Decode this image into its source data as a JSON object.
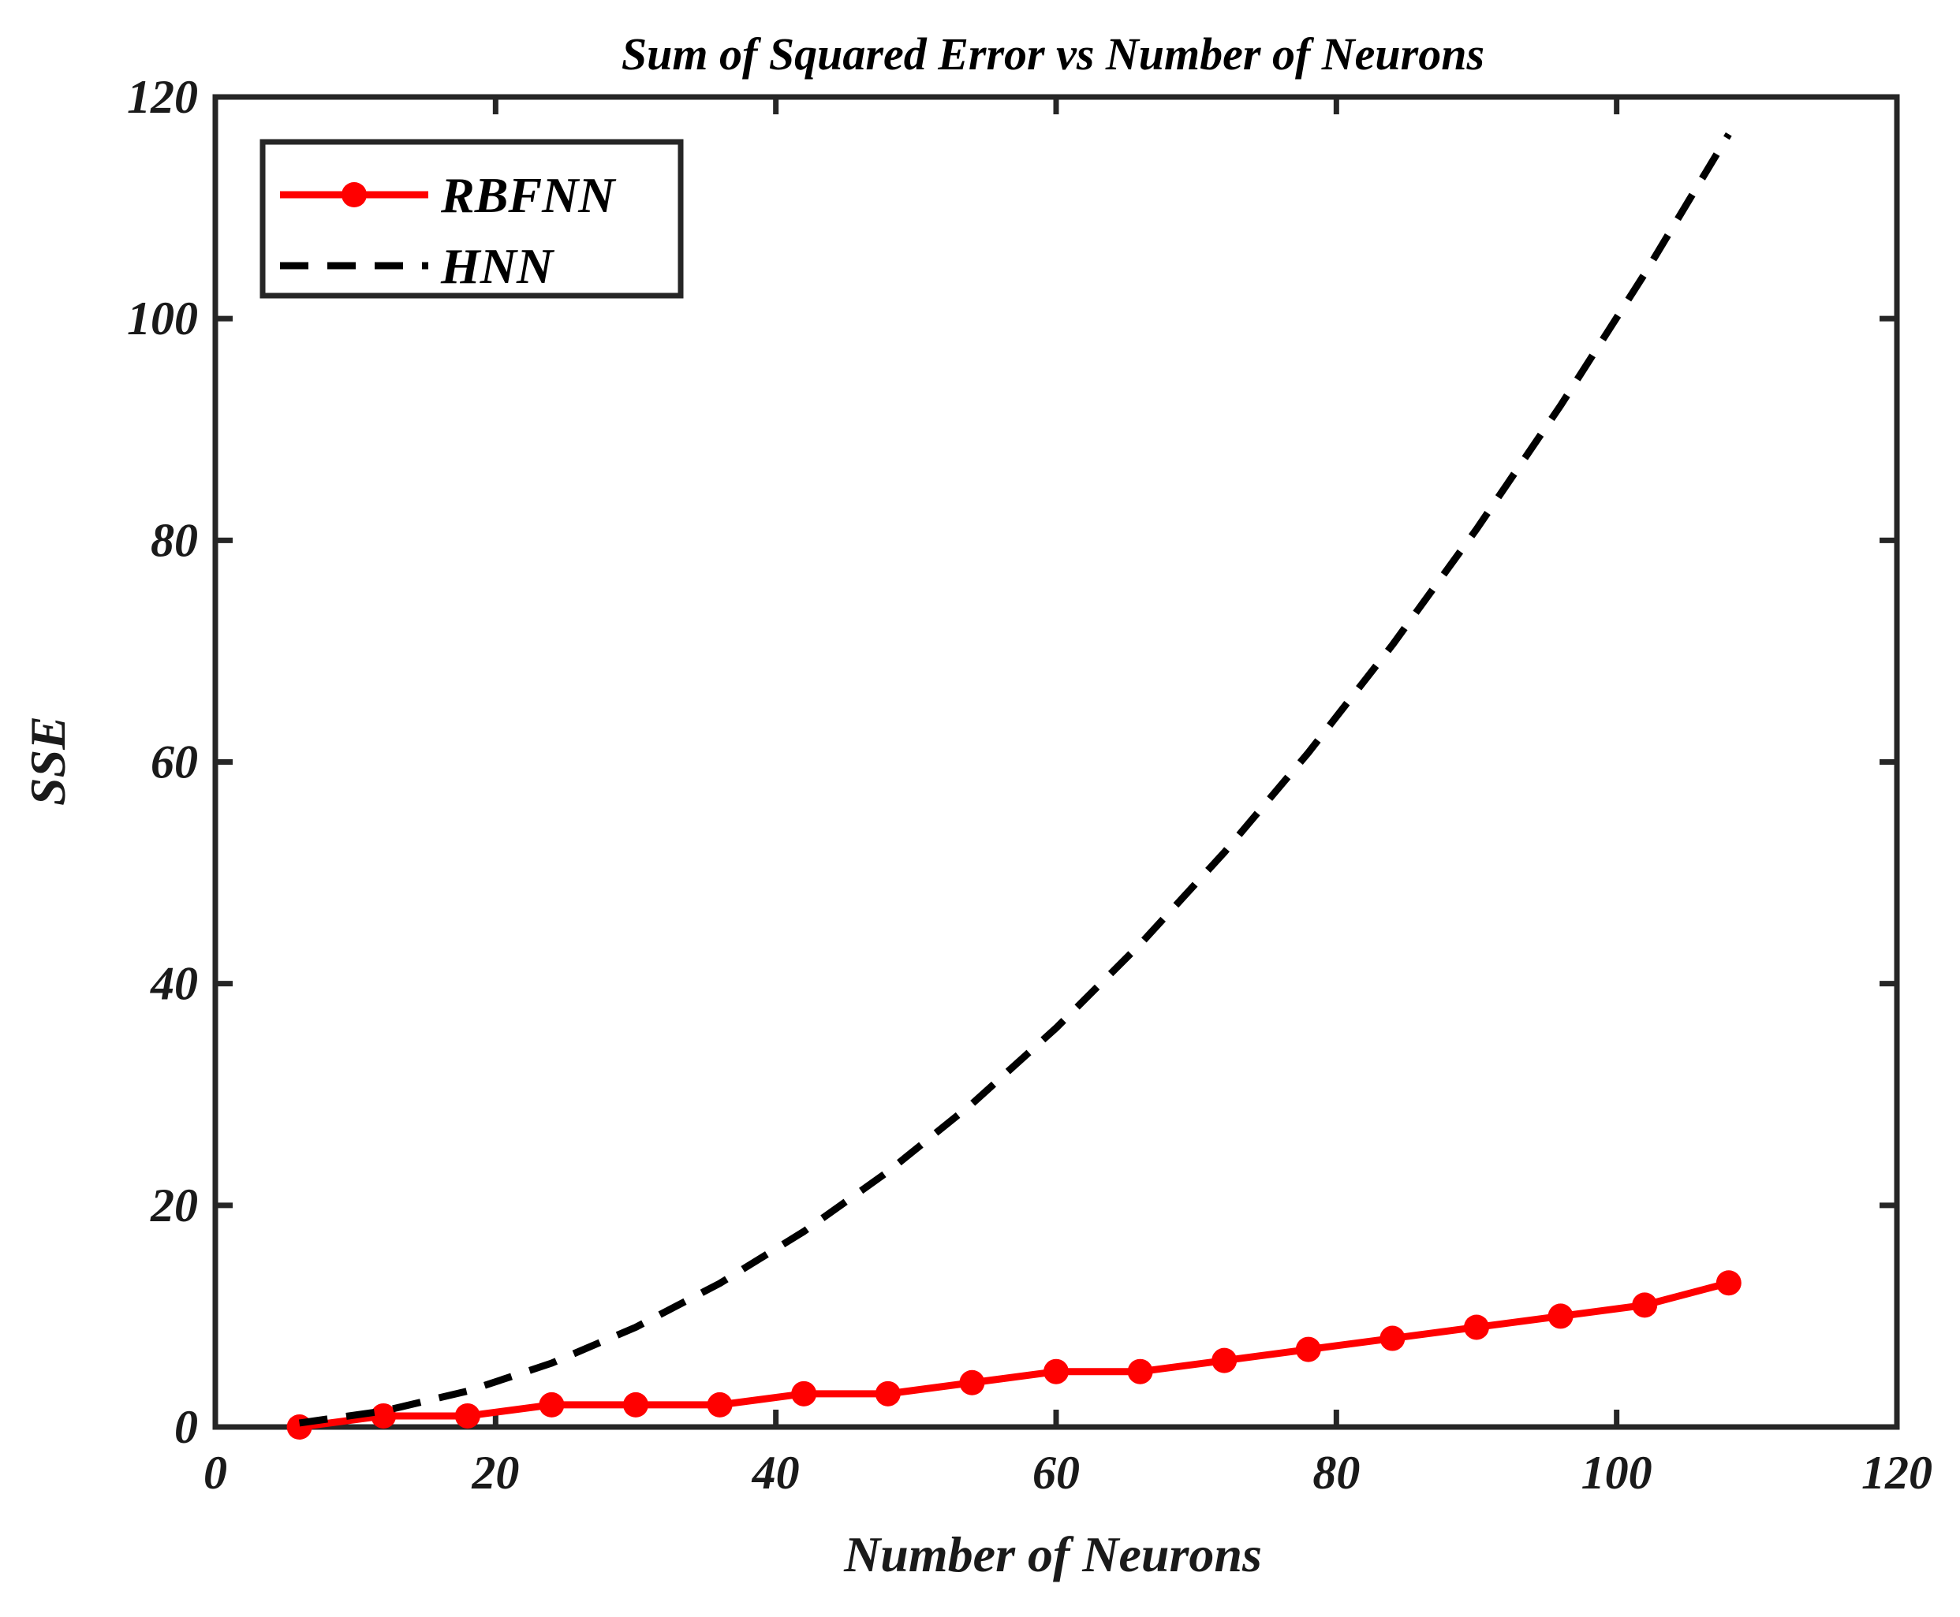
{
  "chart_data": {
    "type": "line",
    "title": "Sum of Squared Error vs Number of Neurons",
    "xlabel": "Number of Neurons",
    "ylabel": "SSE",
    "xlim": [
      0,
      120
    ],
    "ylim": [
      0,
      120
    ],
    "xticks": [
      0,
      20,
      40,
      60,
      80,
      100,
      120
    ],
    "yticks": [
      0,
      20,
      40,
      60,
      80,
      100,
      120
    ],
    "grid": false,
    "legend_position": "top-left",
    "series": [
      {
        "name": "RBFNN",
        "color": "#ff0000",
        "style": "solid-with-markers",
        "x": [
          6,
          12,
          18,
          24,
          30,
          36,
          42,
          48,
          54,
          60,
          66,
          72,
          78,
          84,
          90,
          96,
          102,
          108
        ],
        "y": [
          0,
          1,
          1,
          2,
          2,
          2,
          3,
          3,
          4,
          5,
          5,
          6,
          7,
          8,
          9,
          10,
          11,
          13
        ]
      },
      {
        "name": "HNN",
        "color": "#000000",
        "style": "dashed",
        "x": [
          6,
          12,
          18,
          24,
          30,
          36,
          42,
          48,
          54,
          60,
          66,
          72,
          78,
          84,
          90,
          96,
          102,
          108
        ],
        "y": [
          0.36,
          1.44,
          3.24,
          5.76,
          9.0,
          12.96,
          17.64,
          23.04,
          29.16,
          36.0,
          43.56,
          51.84,
          60.84,
          70.56,
          81.0,
          92.16,
          104.04,
          116.64
        ]
      }
    ]
  }
}
